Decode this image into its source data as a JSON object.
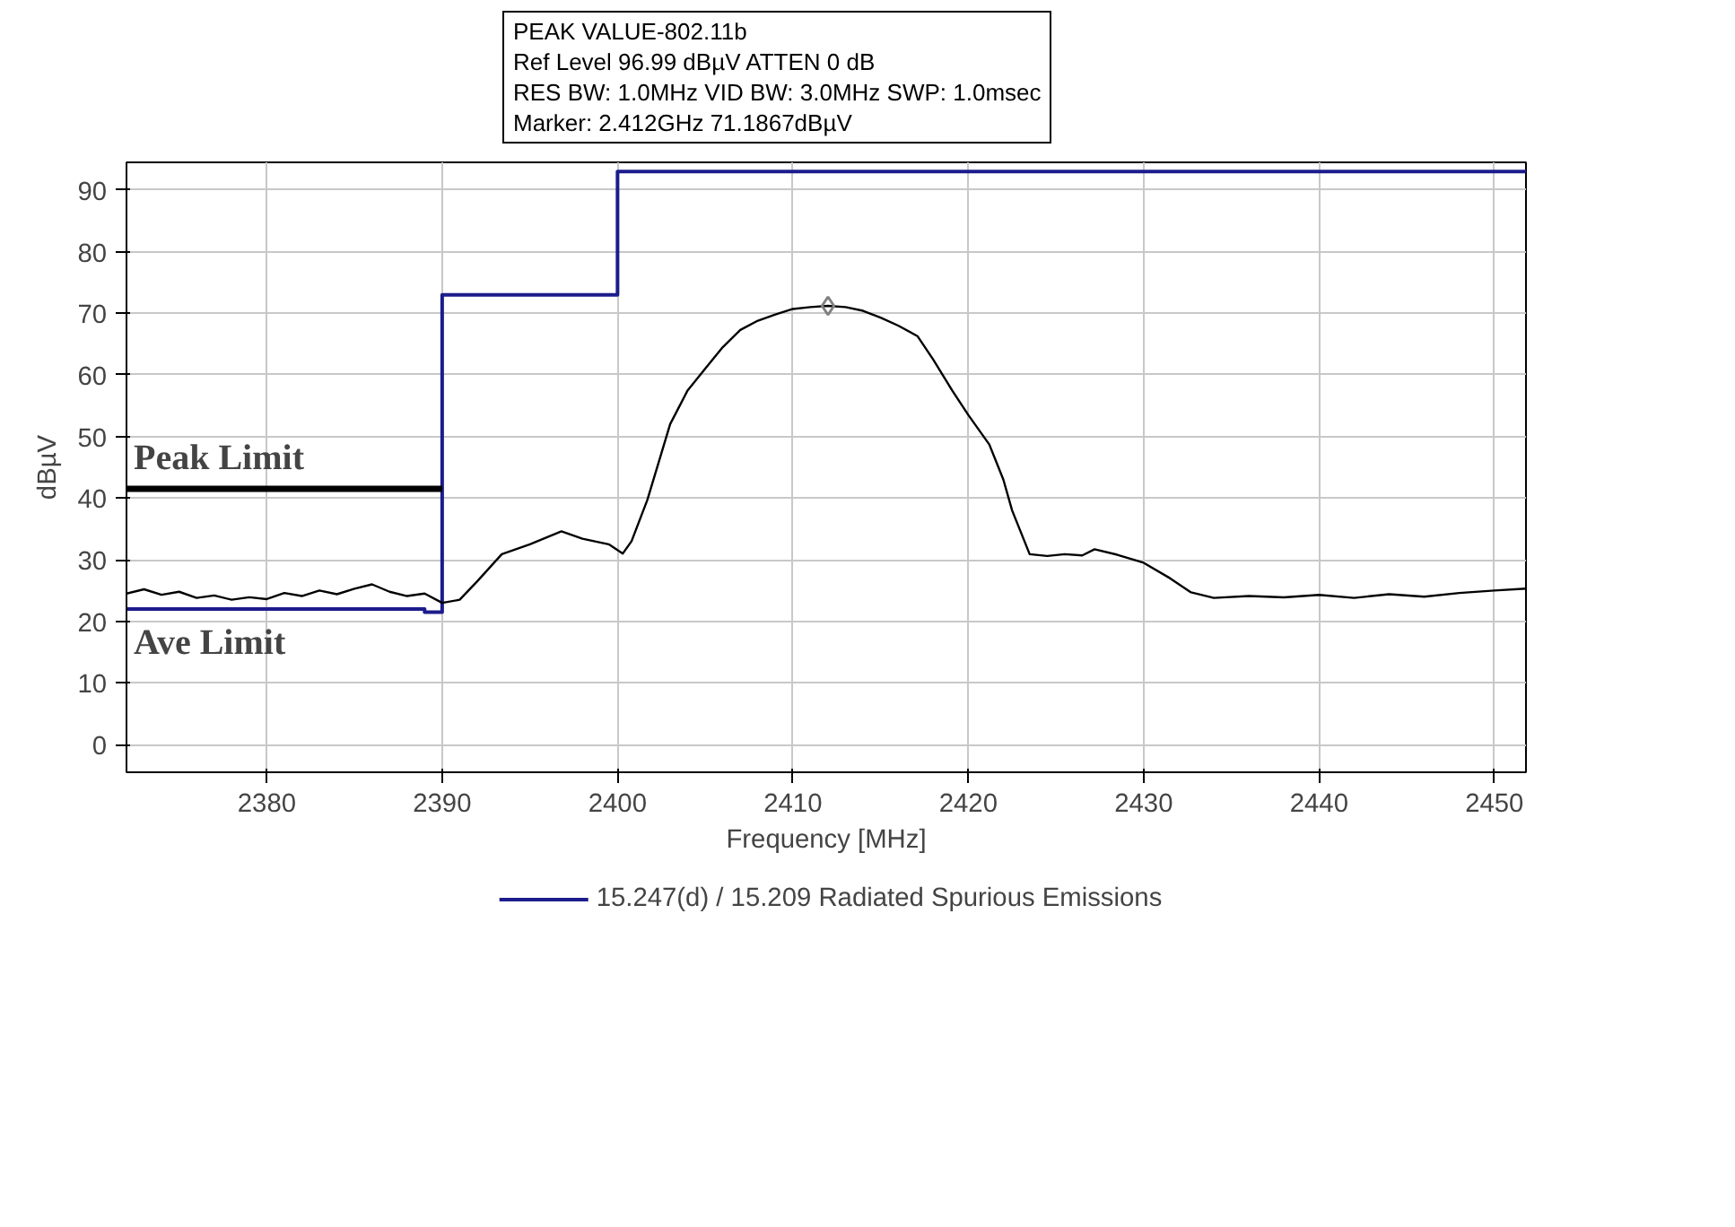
{
  "chart_data": {
    "type": "line",
    "xlabel": "Frequency [MHz]",
    "ylabel": "dBµV",
    "xlim": [
      2372,
      2451.8
    ],
    "ylim": [
      -4.5,
      94.5
    ],
    "xticks": [
      2380,
      2390,
      2400,
      2410,
      2420,
      2430,
      2440,
      2450
    ],
    "yticks": [
      0,
      10,
      20,
      30,
      40,
      50,
      60,
      70,
      80,
      90
    ],
    "grid": true,
    "legend": "bottom",
    "line_style": "solid",
    "annotations": [
      "PEAK VALUE-802.11b",
      "Ref Level 96.99 dBµV    ATTEN 0 dB",
      "RES BW: 1.0MHz  VID BW: 3.0MHz  SWP: 1.0msec",
      "Marker: 2.412GHz  71.1867dBµV",
      {
        "text": "Peak Limit",
        "x": 2372,
        "y": 41.5
      },
      {
        "text": "Ave Limit",
        "x": 2372,
        "y": 22
      }
    ],
    "series": [
      {
        "name": "15.247(d) / 15.209 Radiated Spurious Emissions",
        "color": "#1c1c8c",
        "x": [
          2372,
          2389,
          2389,
          2390,
          2390,
          2400,
          2400,
          2451.8
        ],
        "values": [
          22,
          22,
          21.5,
          21.5,
          73,
          73,
          93,
          93
        ]
      },
      {
        "color": "#000000",
        "x": [
          2372,
          2390
        ],
        "values": [
          41.5,
          41.5
        ]
      },
      {
        "color": "#000000",
        "x": [
          2372,
          2373,
          2374,
          2375,
          2376,
          2377,
          2378,
          2379,
          2380,
          2381,
          2382,
          2383,
          2384,
          2385,
          2386,
          2387,
          2388,
          2389,
          2390,
          2391,
          2392,
          2393.4,
          2395,
          2396.8,
          2398,
          2399.5,
          2400.3,
          2400.8,
          2401.7,
          2403,
          2404,
          2405,
          2406,
          2407,
          2408,
          2409,
          2410,
          2411,
          2412,
          2413,
          2414,
          2415,
          2416,
          2417.1,
          2418,
          2419.1,
          2420,
          2421.2,
          2422,
          2422.5,
          2423.5,
          2424.5,
          2425.5,
          2426.5,
          2427.2,
          2428.5,
          2430,
          2431.5,
          2432.7,
          2434,
          2436,
          2438,
          2440,
          2442,
          2444,
          2446,
          2448,
          2450,
          2451.8
        ],
        "values": [
          24.5,
          25.2,
          24.3,
          24.8,
          23.8,
          24.2,
          23.5,
          23.9,
          23.6,
          24.6,
          24.1,
          25.0,
          24.4,
          25.3,
          26.0,
          24.8,
          24.1,
          24.5,
          23.0,
          23.5,
          26.5,
          30.9,
          32.5,
          34.6,
          33.4,
          32.5,
          31.0,
          33.0,
          39.7,
          52.0,
          57.5,
          61.0,
          64.5,
          67.3,
          68.8,
          69.8,
          70.7,
          71.0,
          71.2,
          71.0,
          70.4,
          69.3,
          68.0,
          66.3,
          62.5,
          57.4,
          53.5,
          48.7,
          43.0,
          38.0,
          30.9,
          30.6,
          30.9,
          30.7,
          31.7,
          30.8,
          29.5,
          27.0,
          24.7,
          23.8,
          24.1,
          23.9,
          24.3,
          23.8,
          24.4,
          24.0,
          24.6,
          25.0,
          25.3
        ]
      },
      {
        "type": "scatter",
        "marker": "diamond",
        "color": "#808080",
        "x": [
          2412
        ],
        "values": [
          71.2
        ]
      }
    ]
  }
}
